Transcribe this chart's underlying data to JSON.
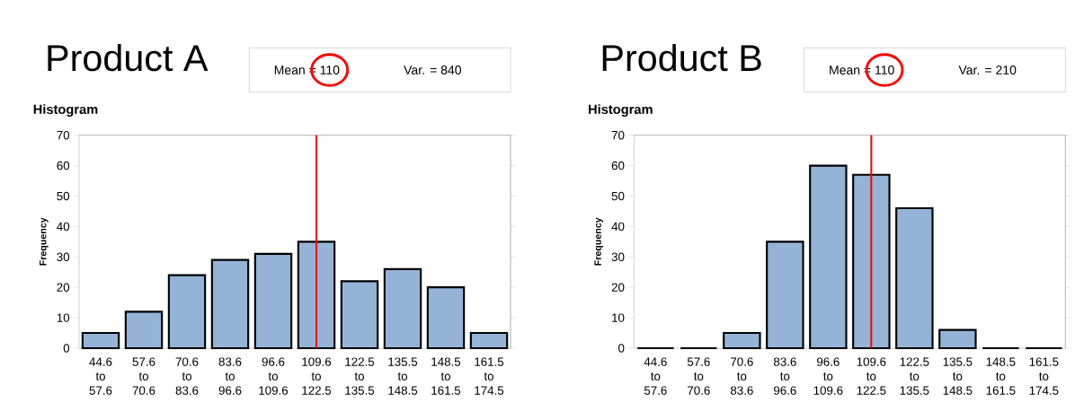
{
  "chart_data": [
    {
      "type": "bar",
      "title": "Product A",
      "subtitle": "Histogram",
      "ylabel": "Frequency",
      "annotations": [
        "Mean = 110",
        "Var. = 840"
      ],
      "categories": [
        "44.6 to 57.6",
        "57.6 to 70.6",
        "70.6 to 83.6",
        "83.6 to 96.6",
        "96.6 to 109.6",
        "109.6 to 122.5",
        "122.5 to 135.5",
        "135.5 to 148.5",
        "148.5 to 161.5",
        "161.5 to 174.5"
      ],
      "values": [
        5,
        12,
        24,
        29,
        31,
        35,
        22,
        26,
        20,
        5
      ],
      "color": "#95b3d7",
      "ref_lines": [
        {
          "axis": "x",
          "value": "109.6 to 122.5",
          "color": "#ff0000"
        }
      ],
      "ylim": [
        0,
        70
      ],
      "yticks": [
        0,
        10,
        20,
        30,
        40,
        50,
        60,
        70
      ]
    },
    {
      "type": "bar",
      "title": "Product B",
      "subtitle": "Histogram",
      "ylabel": "Frequency",
      "annotations": [
        "Mean = 110",
        "Var. = 210"
      ],
      "categories": [
        "44.6 to 57.6",
        "57.6 to 70.6",
        "70.6 to 83.6",
        "83.6 to 96.6",
        "96.6 to 109.6",
        "109.6 to 122.5",
        "122.5 to 135.5",
        "135.5 to 148.5",
        "148.5 to 161.5",
        "161.5 to 174.5"
      ],
      "values": [
        0,
        0,
        5,
        35,
        60,
        57,
        46,
        6,
        0,
        0
      ],
      "color": "#95b3d7",
      "ref_lines": [
        {
          "axis": "x",
          "value": "109.6 to 122.5",
          "color": "#ff0000"
        }
      ],
      "ylim": [
        0,
        70
      ],
      "yticks": [
        0,
        10,
        20,
        30,
        40,
        50,
        60,
        70
      ]
    }
  ]
}
